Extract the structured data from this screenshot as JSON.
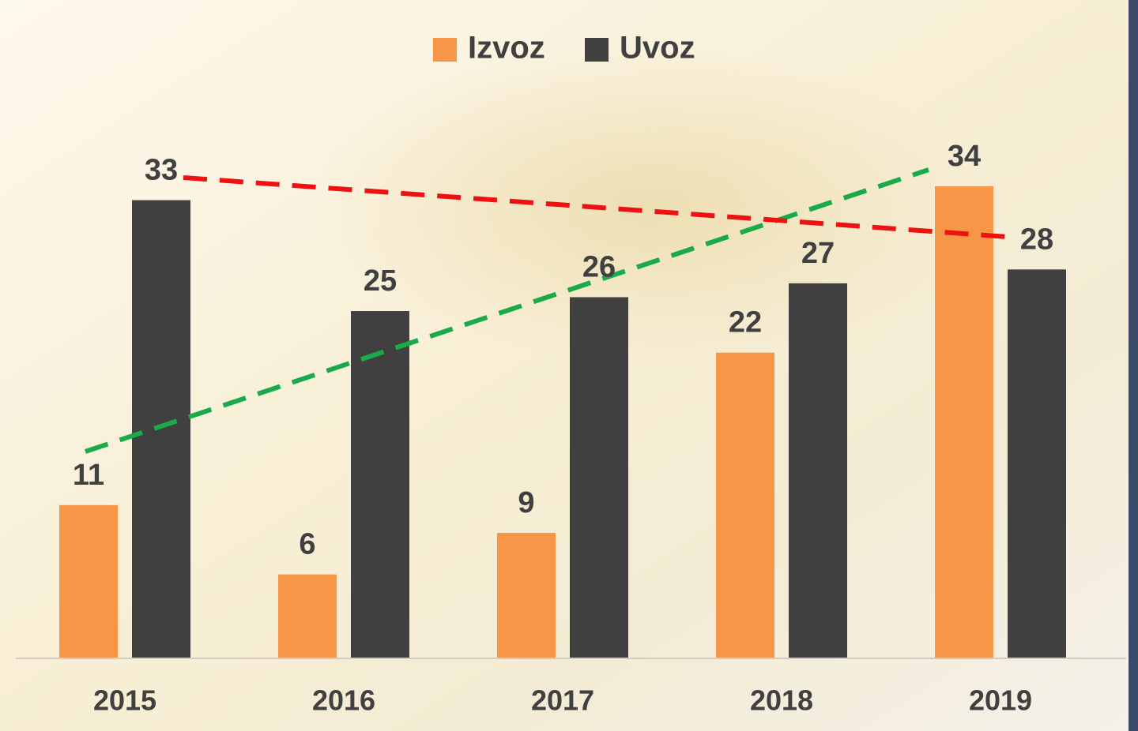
{
  "chart_data": {
    "type": "bar",
    "categories": [
      "2015",
      "2016",
      "2017",
      "2018",
      "2019"
    ],
    "series": [
      {
        "name": "Izvoz",
        "color": "#f79646",
        "values": [
          11,
          6,
          9,
          22,
          34
        ]
      },
      {
        "name": "Uvoz",
        "color": "#404040",
        "values": [
          33,
          25,
          26,
          27,
          28
        ]
      }
    ]
  }
}
